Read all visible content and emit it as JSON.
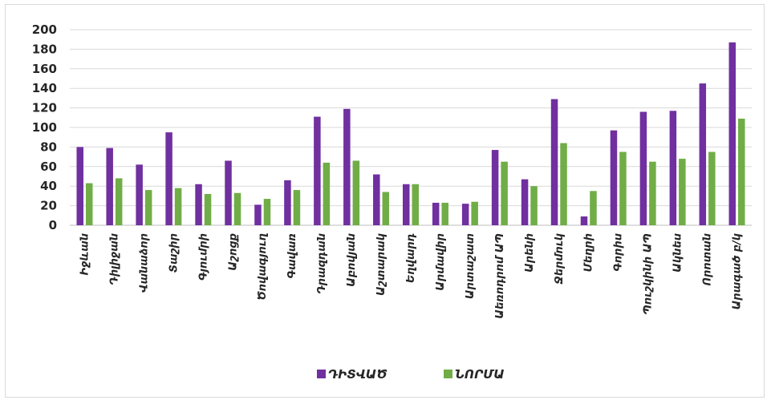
{
  "chart_data": {
    "type": "bar",
    "categories": [
      "Իջևան",
      "Դիլիջան",
      "Վանաձոր",
      "Տաշիր",
      "Գյումրի",
      "Աշոցք",
      "Ծովագյուղ",
      "Գավառ",
      "Դրազդան",
      "Աբովյան",
      "Աշտարակ",
      "Եղվարդ",
      "Արմավիր",
      "Արտաշատ",
      "Աեռոդրոմ ԱՊ",
      "Արենի",
      "Ջերմուկ",
      "Մեղրի",
      "Գորիս",
      "Պուշկինի ԱՊ",
      "Ակնես",
      "Որոտան",
      "Արագած բ/կ"
    ],
    "series": [
      {
        "name": "ԴԻՏՎԱԾ",
        "color": "#7030a0",
        "values": [
          80,
          79,
          62,
          95,
          42,
          66,
          21,
          46,
          111,
          119,
          52,
          42,
          23,
          22,
          77,
          47,
          129,
          9,
          97,
          116,
          117,
          145,
          187
        ]
      },
      {
        "name": "ՆՈՐՄԱ",
        "color": "#70ad47",
        "values": [
          43,
          48,
          36,
          38,
          32,
          33,
          27,
          36,
          64,
          66,
          34,
          42,
          23,
          24,
          65,
          40,
          84,
          35,
          75,
          65,
          68,
          75,
          109
        ]
      }
    ],
    "yticks": [
      0,
      20,
      40,
      60,
      80,
      100,
      120,
      140,
      160,
      180,
      200
    ],
    "ylim": [
      0,
      200
    ],
    "grid": true,
    "legend": "bottom-center",
    "title": "",
    "xlabel": "",
    "ylabel": ""
  }
}
